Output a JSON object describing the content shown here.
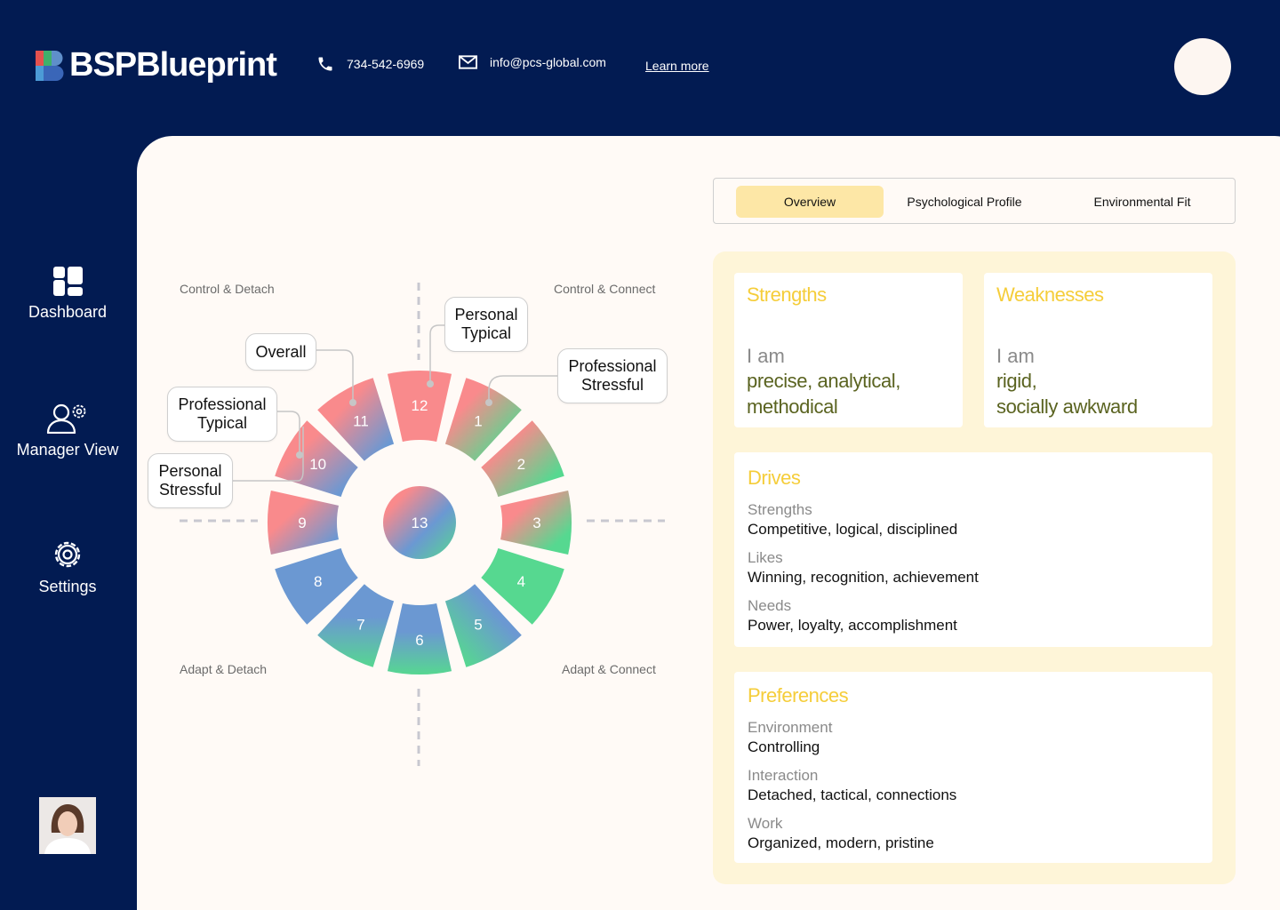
{
  "header": {
    "brand": "BSPBlueprint",
    "phone": "734-542-6969",
    "email": "info@pcs-global.com",
    "learn_more": "Learn more"
  },
  "sidebar": {
    "items": [
      {
        "label": "Dashboard",
        "icon": "dashboard-icon"
      },
      {
        "label": "Manager View",
        "icon": "manager-view-icon"
      },
      {
        "label": "Settings",
        "icon": "gear-icon"
      }
    ]
  },
  "wheel": {
    "quadrants": {
      "top_left": "Control & Detach",
      "top_right": "Control & Connect",
      "bottom_left": "Adapt & Detach",
      "bottom_right": "Adapt & Connect"
    },
    "segments": [
      "1",
      "2",
      "3",
      "4",
      "5",
      "6",
      "7",
      "8",
      "9",
      "10",
      "11",
      "12"
    ],
    "center": "13",
    "callouts": {
      "overall": "Overall",
      "personal_typical": [
        "Personal",
        "Typical"
      ],
      "professional_stressful": [
        "Professional",
        "Stressful"
      ],
      "professional_typical": [
        "Professional",
        "Typical"
      ],
      "personal_stressful": [
        "Personal",
        "Stressful"
      ]
    }
  },
  "tabs": [
    "Overview",
    "Psychological Profile",
    "Environmental Fit"
  ],
  "strengths": {
    "title": "Strengths",
    "lead": "I am",
    "traits": [
      "precise, analytical,",
      "methodical"
    ]
  },
  "weaknesses": {
    "title": "Weaknesses",
    "lead": "I am",
    "traits": [
      "rigid,",
      "socially awkward"
    ]
  },
  "drives": {
    "title": "Drives",
    "rows": [
      {
        "key": "Strengths",
        "value": "Competitive, logical, disciplined"
      },
      {
        "key": "Likes",
        "value": "Winning, recognition, achievement"
      },
      {
        "key": "Needs",
        "value": "Power, loyalty, accomplishment"
      }
    ]
  },
  "preferences": {
    "title": "Preferences",
    "rows": [
      {
        "key": "Environment",
        "value": "Controlling"
      },
      {
        "key": "Interaction",
        "value": "Detached, tactical, connections"
      },
      {
        "key": "Work",
        "value": "Organized, modern, pristine"
      }
    ]
  },
  "colors": {
    "navy": "#021b52",
    "red": "#f98a8c",
    "green": "#56d890",
    "blue": "#6b98d2",
    "yellow": "#f5cd3a"
  }
}
